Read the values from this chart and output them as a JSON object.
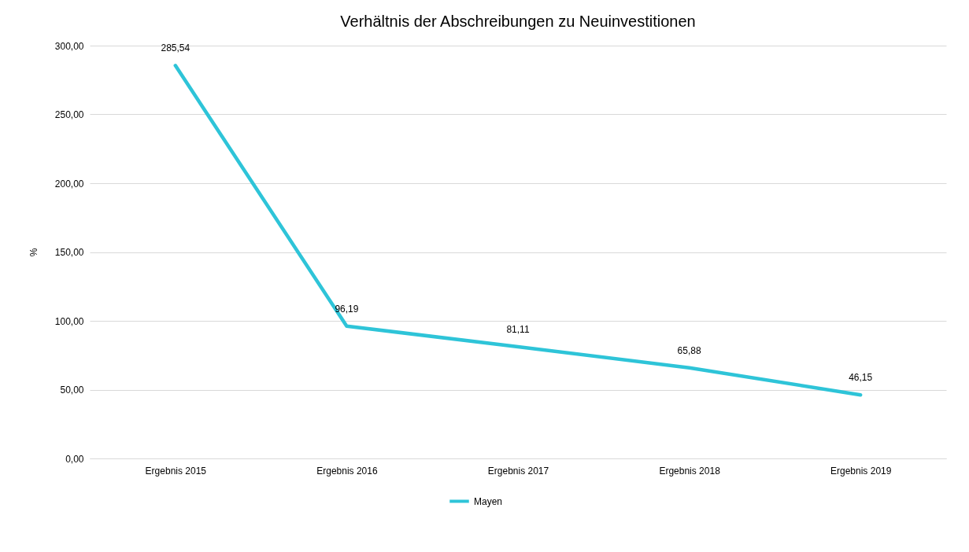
{
  "chart_data": {
    "type": "line",
    "title": "Verhältnis der Abschreibungen zu Neuinvestitionen",
    "ylabel": "%",
    "categories": [
      "Ergebnis 2015",
      "Ergebnis 2016",
      "Ergebnis 2017",
      "Ergebnis 2018",
      "Ergebnis 2019"
    ],
    "series": [
      {
        "name": "Mayen",
        "color": "#2ec4d8",
        "values": [
          285.54,
          96.19,
          81.11,
          65.88,
          46.15
        ],
        "value_labels": [
          "285,54",
          "96,19",
          "81,11",
          "65,88",
          "46,15"
        ]
      }
    ],
    "ylim": [
      0,
      300
    ],
    "yticks": [
      {
        "value": 0,
        "label": "0,00"
      },
      {
        "value": 50,
        "label": "50,00"
      },
      {
        "value": 100,
        "label": "100,00"
      },
      {
        "value": 150,
        "label": "150,00"
      },
      {
        "value": 200,
        "label": "200,00"
      },
      {
        "value": 250,
        "label": "250,00"
      },
      {
        "value": 300,
        "label": "300,00"
      }
    ],
    "grid": "y",
    "legend": "bottom",
    "marker": "none",
    "line_style": "solid"
  }
}
